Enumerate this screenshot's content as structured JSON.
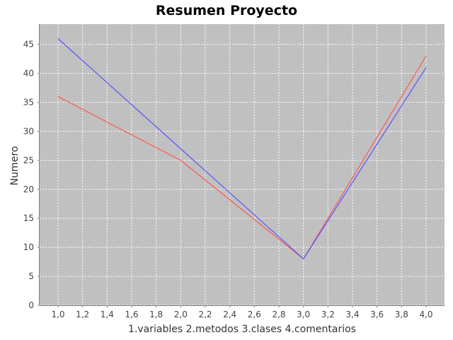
{
  "chart_data": {
    "type": "line",
    "title": "Resumen Proyecto",
    "xlabel": "1.variables  2.metodos  3.clases  4.comentarios",
    "ylabel": "Numero",
    "xlim": [
      0.85,
      4.15
    ],
    "ylim": [
      0,
      48.5
    ],
    "x_ticks": [
      1.0,
      1.2,
      1.4,
      1.6,
      1.8,
      2.0,
      2.2,
      2.4,
      2.6,
      2.8,
      3.0,
      3.2,
      3.4,
      3.6,
      3.8,
      4.0
    ],
    "x_tick_labels": [
      "1,0",
      "1,2",
      "1,4",
      "1,6",
      "1,8",
      "2,0",
      "2,2",
      "2,4",
      "2,6",
      "2,8",
      "3,0",
      "3,2",
      "3,4",
      "3,6",
      "3,8",
      "4,0"
    ],
    "y_ticks": [
      0,
      5,
      10,
      15,
      20,
      25,
      30,
      35,
      40,
      45
    ],
    "y_tick_labels": [
      "0",
      "5",
      "10",
      "15",
      "20",
      "25",
      "30",
      "35",
      "40",
      "45"
    ],
    "grid": true,
    "legend": "none",
    "plot_background": "#c0c0c0",
    "series": [
      {
        "color": "#ff5555",
        "x": [
          1,
          2,
          3,
          4
        ],
        "y": [
          36,
          25,
          8,
          43
        ]
      },
      {
        "color": "#5555ff",
        "x": [
          1,
          2,
          3,
          4
        ],
        "y": [
          46,
          27,
          8,
          41
        ]
      }
    ]
  }
}
